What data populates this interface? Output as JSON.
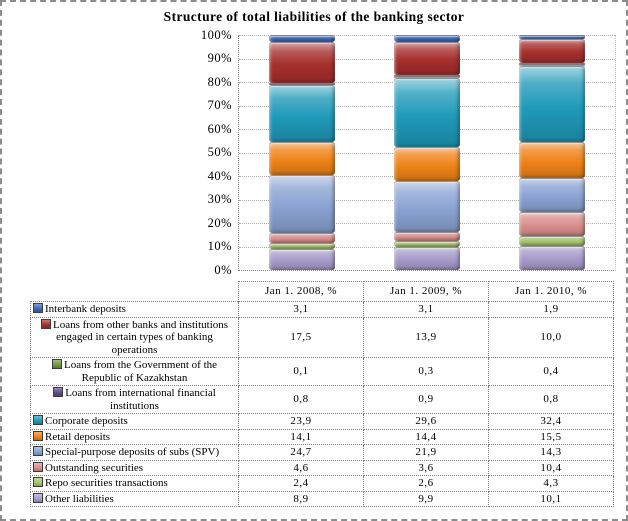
{
  "chart_data": {
    "type": "bar",
    "stacked": true,
    "title": "Structure of total liabilities of the banking sector",
    "categories": [
      "Jan 1. 2008, %",
      "Jan 1. 2009, %",
      "Jan 1. 2010, %"
    ],
    "ylim": [
      0,
      100
    ],
    "y_ticks": [
      "0%",
      "10%",
      "20%",
      "30%",
      "40%",
      "50%",
      "60%",
      "70%",
      "80%",
      "90%",
      "100%"
    ],
    "grid": true,
    "legend_position": "table-below",
    "stack_note": "first series drawn at top of each bar, last series at bottom",
    "series": [
      {
        "name": "Interbank deposits",
        "color": "#3A67B7",
        "values": [
          3.1,
          3.1,
          1.9
        ]
      },
      {
        "name": "Loans from other banks and institutions engaged in certain types of banking operations",
        "color": "#A62F2D",
        "values": [
          17.5,
          13.9,
          10.0
        ]
      },
      {
        "name": "Loans from the Government of the Republic of Kazakhstan",
        "color": "#6E9A3C",
        "values": [
          0.1,
          0.3,
          0.4
        ]
      },
      {
        "name": "Loans from international financial institutions",
        "color": "#5A4B8A",
        "values": [
          0.8,
          0.9,
          0.8
        ]
      },
      {
        "name": "Corporate deposits",
        "color": "#1F9ABA",
        "values": [
          23.9,
          29.6,
          32.4
        ]
      },
      {
        "name": "Retail deposits",
        "color": "#EF8318",
        "values": [
          14.1,
          14.4,
          15.5
        ]
      },
      {
        "name": "Special-purpose deposits of subs (SPV)",
        "color": "#8AA3D3",
        "values": [
          24.7,
          21.9,
          14.3
        ]
      },
      {
        "name": "Outstanding securities",
        "color": "#D98F8D",
        "values": [
          4.6,
          3.6,
          10.4
        ]
      },
      {
        "name": "Repo securities transactions",
        "color": "#A6C46E",
        "values": [
          2.4,
          2.6,
          4.3
        ]
      },
      {
        "name": "Other liabilities",
        "color": "#A79BCB",
        "values": [
          8.9,
          9.9,
          10.1
        ]
      }
    ]
  },
  "table": {
    "header": [
      "Jan 1. 2008, %",
      "Jan 1. 2009, %",
      "Jan 1. 2010, %"
    ],
    "rows": [
      {
        "label": "Interbank deposits",
        "values": [
          "3,1",
          "3,1",
          "1,9"
        ]
      },
      {
        "label": "Loans from other banks and institutions engaged in certain types of banking operations",
        "values": [
          "17,5",
          "13,9",
          "10,0"
        ]
      },
      {
        "label": "Loans from the Government of the Republic of Kazakhstan",
        "values": [
          "0,1",
          "0,3",
          "0,4"
        ]
      },
      {
        "label": "Loans from international financial institutions",
        "values": [
          "0,8",
          "0,9",
          "0,8"
        ]
      },
      {
        "label": "Corporate deposits",
        "values": [
          "23,9",
          "29,6",
          "32,4"
        ]
      },
      {
        "label": "Retail deposits",
        "values": [
          "14,1",
          "14,4",
          "15,5"
        ]
      },
      {
        "label": "Special-purpose deposits of subs (SPV)",
        "values": [
          "24,7",
          "21,9",
          "14,3"
        ]
      },
      {
        "label": "Outstanding securities",
        "values": [
          "4,6",
          "3,6",
          "10,4"
        ]
      },
      {
        "label": "Repo securities transactions",
        "values": [
          "2,4",
          "2,6",
          "4,3"
        ]
      },
      {
        "label": "Other liabilities",
        "values": [
          "8,9",
          "9,9",
          "10,1"
        ]
      }
    ]
  }
}
